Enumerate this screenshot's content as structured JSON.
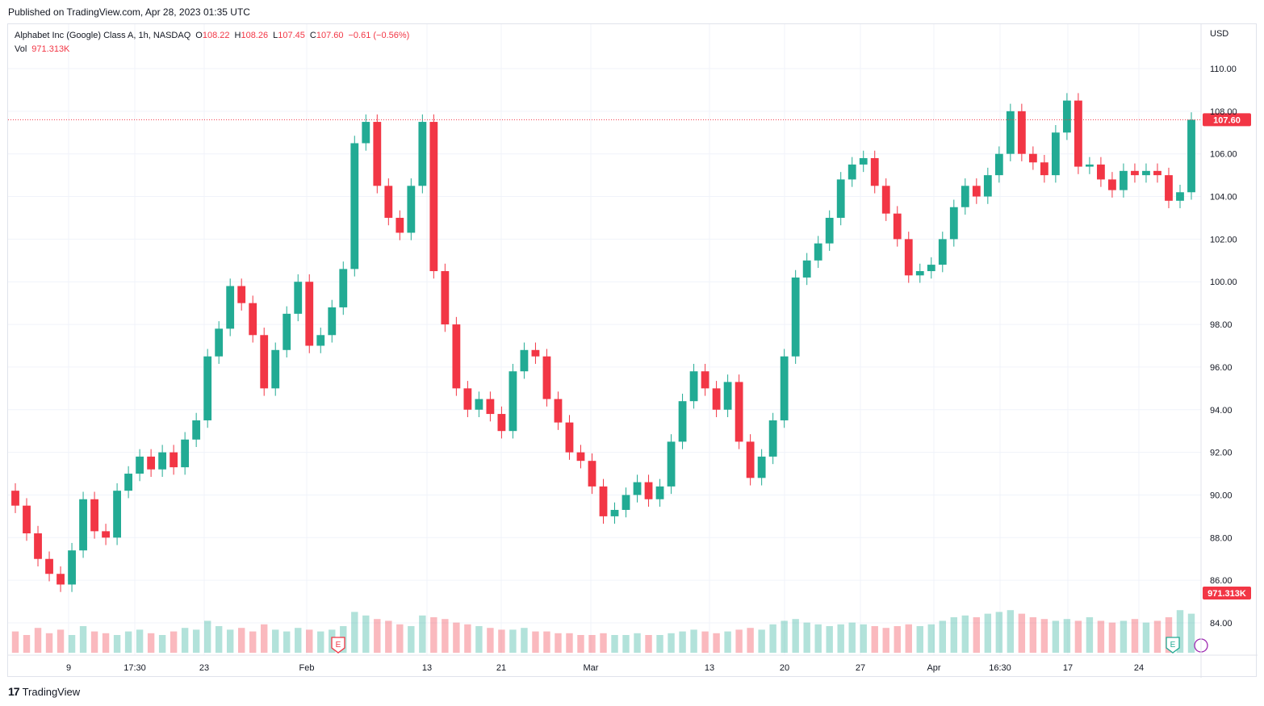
{
  "header": {
    "published": "Published on TradingView.com, Apr 28, 2023 01:35 UTC"
  },
  "legend": {
    "symbol": "Alphabet Inc (Google) Class A, 1h, NASDAQ",
    "open_label": "O",
    "open": "108.22",
    "high_label": "H",
    "high": "108.26",
    "low_label": "L",
    "low": "107.45",
    "close_label": "C",
    "close": "107.60",
    "change": "−0.61 (−0.56%)",
    "vol_label": "Vol",
    "vol": "971.313K"
  },
  "footer": {
    "logo": "17",
    "brand": "TradingView"
  },
  "colors": {
    "up": "#22ab94",
    "down": "#f23645",
    "grid": "#f0f3fa",
    "text": "#131722"
  },
  "chart_data": {
    "type": "candlestick",
    "title": "Alphabet Inc (Google) Class A, 1h, NASDAQ",
    "currency": "USD",
    "ylim": [
      82.0,
      111.0
    ],
    "y_ticks": [
      "110.00",
      "108.00",
      "106.00",
      "104.00",
      "102.00",
      "100.00",
      "98.00",
      "96.00",
      "94.00",
      "92.00",
      "90.00",
      "88.00",
      "86.00",
      "84.00"
    ],
    "x_labels": [
      "9",
      "17:30",
      "23",
      "Feb",
      "13",
      "21",
      "Mar",
      "13",
      "20",
      "27",
      "Apr",
      "16:30",
      "17",
      "24"
    ],
    "last_price": "107.60",
    "last_volume": "971.313K",
    "earnings_markers": [
      "E",
      "E"
    ],
    "series": [
      {
        "name": "Close",
        "values": [
          89.5,
          88.2,
          87.0,
          86.3,
          85.8,
          87.4,
          89.8,
          88.3,
          88.0,
          90.2,
          91.0,
          91.8,
          91.2,
          92.0,
          91.3,
          92.6,
          93.5,
          96.5,
          97.8,
          99.8,
          99.0,
          97.5,
          95.0,
          96.8,
          98.5,
          100.0,
          97.0,
          97.5,
          98.8,
          100.6,
          106.5,
          107.5,
          104.5,
          103.0,
          102.3,
          104.5,
          107.5,
          100.5,
          98.0,
          95.0,
          94.0,
          94.5,
          93.8,
          93.0,
          95.8,
          96.8,
          96.5,
          94.5,
          93.4,
          92.0,
          91.6,
          90.4,
          89.0,
          89.3,
          90.0,
          90.6,
          89.8,
          90.4,
          92.5,
          94.4,
          95.8,
          95.0,
          94.0,
          95.3,
          92.5,
          90.8,
          91.8,
          93.5,
          96.5,
          100.2,
          101.0,
          101.8,
          103.0,
          104.8,
          105.5,
          105.8,
          104.5,
          103.2,
          102.0,
          100.3,
          100.5,
          100.8,
          102.0,
          103.5,
          104.5,
          104.0,
          105.0,
          106.0,
          108.0,
          106.0,
          105.6,
          105.0,
          107.0,
          108.5,
          105.4,
          105.5,
          104.8,
          104.3,
          105.2,
          105.0,
          105.2,
          105.0,
          103.8,
          104.2,
          107.6
        ]
      },
      {
        "name": "Vol",
        "values": [
          1.2,
          1.0,
          1.4,
          1.1,
          1.3,
          1.0,
          1.5,
          1.2,
          1.1,
          1.0,
          1.2,
          1.3,
          1.1,
          1.0,
          1.2,
          1.4,
          1.3,
          1.8,
          1.5,
          1.3,
          1.4,
          1.2,
          1.6,
          1.3,
          1.2,
          1.4,
          1.3,
          1.2,
          1.3,
          1.5,
          2.3,
          2.1,
          1.9,
          1.8,
          1.6,
          1.5,
          2.1,
          2.0,
          1.9,
          1.7,
          1.6,
          1.5,
          1.4,
          1.3,
          1.3,
          1.4,
          1.2,
          1.2,
          1.1,
          1.1,
          1.0,
          1.0,
          1.1,
          1.0,
          1.0,
          1.1,
          1.0,
          1.0,
          1.1,
          1.2,
          1.3,
          1.2,
          1.1,
          1.2,
          1.3,
          1.4,
          1.3,
          1.6,
          1.8,
          1.9,
          1.7,
          1.6,
          1.5,
          1.6,
          1.7,
          1.6,
          1.5,
          1.4,
          1.5,
          1.6,
          1.5,
          1.6,
          1.8,
          2.0,
          2.1,
          2.0,
          2.2,
          2.3,
          2.4,
          2.2,
          2.0,
          1.9,
          1.8,
          1.9,
          1.8,
          2.0,
          1.8,
          1.7,
          1.8,
          1.9,
          1.7,
          1.8,
          2.0,
          2.4,
          2.2
        ]
      }
    ]
  }
}
